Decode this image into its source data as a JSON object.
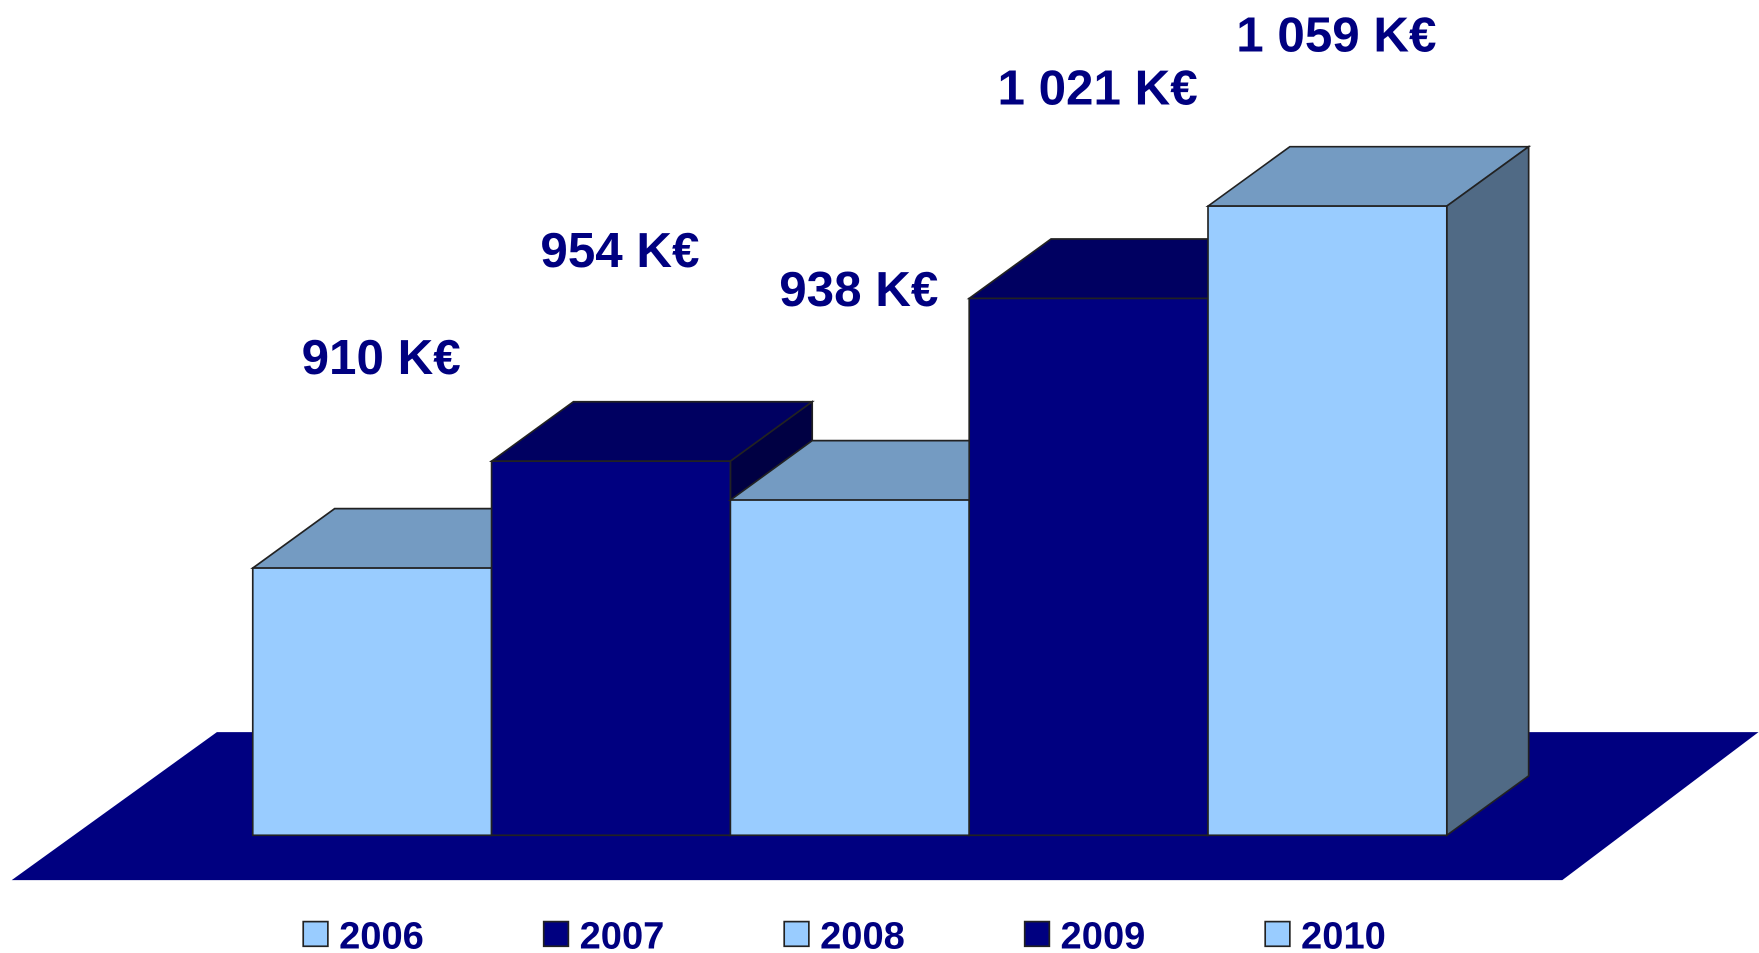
{
  "chart_data": {
    "type": "bar",
    "categories": [
      "2006",
      "2007",
      "2008",
      "2009",
      "2010"
    ],
    "values": [
      910,
      954,
      938,
      1021,
      1059
    ],
    "value_labels": [
      "910 K€",
      "954 K€",
      "938 K€",
      "1 021 K€",
      "1 059 K€"
    ],
    "colors": [
      "#99ccff",
      "#000080",
      "#99ccff",
      "#000080",
      "#99ccff"
    ],
    "ylim": [
      800,
      1100
    ],
    "floor_color": "#000080",
    "legend": "bottom"
  }
}
